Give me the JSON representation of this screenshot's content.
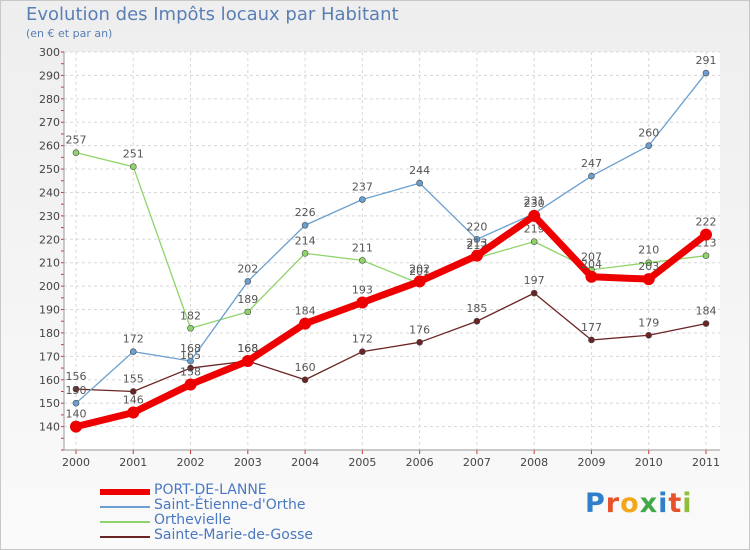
{
  "header": {
    "title": "Evolution des Impôts locaux par Habitant",
    "subtitle": "(en € et par an)"
  },
  "logo": {
    "text": "Proxiti",
    "letter_colors": [
      "#2f7fc9",
      "#e8522b",
      "#f2a81d",
      "#43a84a",
      "#2f7fc9",
      "#e8522b",
      "#8fbf3a"
    ]
  },
  "chart_data": {
    "type": "line",
    "title": "Evolution des Impôts locaux par Habitant",
    "subtitle": "(en € et par an)",
    "xlabel": "",
    "ylabel": "",
    "x": [
      "2000",
      "2001",
      "2002",
      "2003",
      "2004",
      "2005",
      "2006",
      "2007",
      "2008",
      "2009",
      "2010",
      "2011"
    ],
    "ylim": [
      130,
      300
    ],
    "yticks": [
      140,
      150,
      160,
      170,
      180,
      190,
      200,
      210,
      220,
      230,
      240,
      250,
      260,
      270,
      280,
      290,
      300
    ],
    "grid": true,
    "legend_position": "bottom-left",
    "series": [
      {
        "name": "Sainte-Marie-de-Gosse",
        "color": "#6b2424",
        "values": [
          156,
          155,
          165,
          168,
          160,
          172,
          176,
          185,
          197,
          177,
          179,
          184
        ]
      },
      {
        "name": "Orthevielle",
        "color": "#8fd46a",
        "values": [
          257,
          251,
          182,
          189,
          214,
          211,
          201,
          212,
          219,
          207,
          210,
          213
        ]
      },
      {
        "name": "Saint-Étienne-d'Orthe",
        "color": "#6a9fd0",
        "values": [
          150,
          172,
          168,
          202,
          226,
          237,
          244,
          220,
          231,
          247,
          260,
          291
        ]
      },
      {
        "name": "PORT-DE-LANNE",
        "color": "#ee0000",
        "values": [
          140,
          146,
          158,
          168,
          184,
          193,
          202,
          213,
          230,
          204,
          203,
          222
        ]
      }
    ],
    "legend": [
      "PORT-DE-LANNE",
      "Saint-Étienne-d'Orthe",
      "Orthevielle",
      "Sainte-Marie-de-Gosse"
    ]
  }
}
